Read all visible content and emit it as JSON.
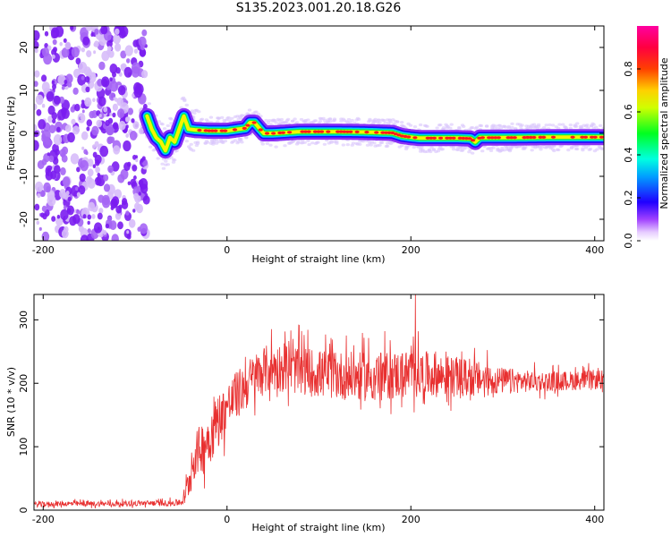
{
  "figure": {
    "title": "S135.2023.001.20.18.G26"
  },
  "chart_data": [
    {
      "type": "heatmap",
      "title": "",
      "xlabel": "Height of straight line (km)",
      "ylabel": "Frequency (Hz)",
      "xlim": [
        -210,
        410
      ],
      "ylim": [
        -25,
        25
      ],
      "xticks": [
        "-200",
        "0",
        "200",
        "400"
      ],
      "yticks": [
        "-20",
        "-10",
        "0",
        "10",
        "20"
      ],
      "xtick_values": [
        -200,
        0,
        200,
        400
      ],
      "ytick_values": [
        -20,
        -10,
        0,
        10,
        20
      ],
      "grid": false,
      "colorbar": {
        "label": "Normalized spectral amplitude",
        "range": [
          0,
          1
        ],
        "ticks": [
          "0.0",
          "0.2",
          "0.4",
          "0.6",
          "0.8"
        ],
        "tick_values": [
          0,
          0.2,
          0.4,
          0.6,
          0.8
        ],
        "colors": [
          "#ffffff",
          "#cc99ff",
          "#8000ff",
          "#0000ff",
          "#00ffff",
          "#00ff00",
          "#ffff00",
          "#ff8000",
          "#ff0000",
          "#ff00aa"
        ]
      },
      "noise_region": {
        "x": [
          -210,
          -87
        ]
      },
      "ridge": {
        "x": [
          -87,
          -82,
          -77,
          -72,
          -67,
          -62,
          -57,
          -52,
          -47,
          -42,
          -35,
          -20,
          0,
          20,
          25,
          30,
          35,
          40,
          50,
          80,
          120,
          150,
          180,
          190,
          200,
          210,
          250,
          265,
          270,
          275,
          300,
          350,
          400,
          410
        ],
        "y": [
          4,
          1,
          -1,
          -2,
          -4,
          -1,
          -2,
          1,
          4,
          1,
          0.8,
          0.6,
          0.6,
          1.2,
          2.5,
          2.5,
          1.2,
          0,
          0,
          0.4,
          0.4,
          0.3,
          0.1,
          -0.6,
          -0.9,
          -1.1,
          -1.1,
          -1.2,
          -2,
          -1,
          -1,
          -0.9,
          -0.9,
          -0.9
        ]
      }
    },
    {
      "type": "line",
      "title": "",
      "xlabel": "Height of straight line (km)",
      "ylabel": "SNR (10 * v/v)",
      "xlim": [
        -210,
        410
      ],
      "ylim": [
        0,
        340
      ],
      "xticks": [
        "-200",
        "0",
        "200",
        "400"
      ],
      "yticks": [
        "0",
        "100",
        "200",
        "300"
      ],
      "xtick_values": [
        -200,
        0,
        200,
        400
      ],
      "ytick_values": [
        0,
        100,
        200,
        300
      ],
      "grid": false,
      "color": "#e83030",
      "series": [
        {
          "x": [
            -210,
            -180,
            -150,
            -120,
            -90,
            -60,
            -50,
            -45,
            -40,
            -35,
            -30,
            -25,
            -20,
            -15,
            -10,
            -5,
            0,
            5,
            10,
            20,
            30,
            40,
            50,
            60,
            80,
            100,
            125,
            150,
            175,
            200,
            225,
            250,
            275,
            300,
            325,
            350,
            375,
            400,
            410
          ],
          "values": [
            9,
            10,
            10,
            10,
            11,
            11,
            12,
            25,
            55,
            85,
            95,
            105,
            115,
            125,
            145,
            150,
            165,
            170,
            180,
            195,
            210,
            220,
            225,
            225,
            220,
            215,
            212,
            210,
            212,
            215,
            213,
            210,
            206,
            204,
            203,
            203,
            204,
            206,
            205
          ],
          "noise_amplitude": [
            6,
            6,
            6,
            6,
            6,
            7,
            8,
            25,
            45,
            50,
            55,
            60,
            62,
            62,
            60,
            58,
            55,
            55,
            55,
            55,
            55,
            55,
            55,
            55,
            55,
            55,
            55,
            55,
            55,
            55,
            50,
            45,
            40,
            30,
            25,
            22,
            22,
            22,
            22
          ]
        }
      ],
      "annotations_peak": {
        "x": 205,
        "value": 340
      }
    }
  ]
}
